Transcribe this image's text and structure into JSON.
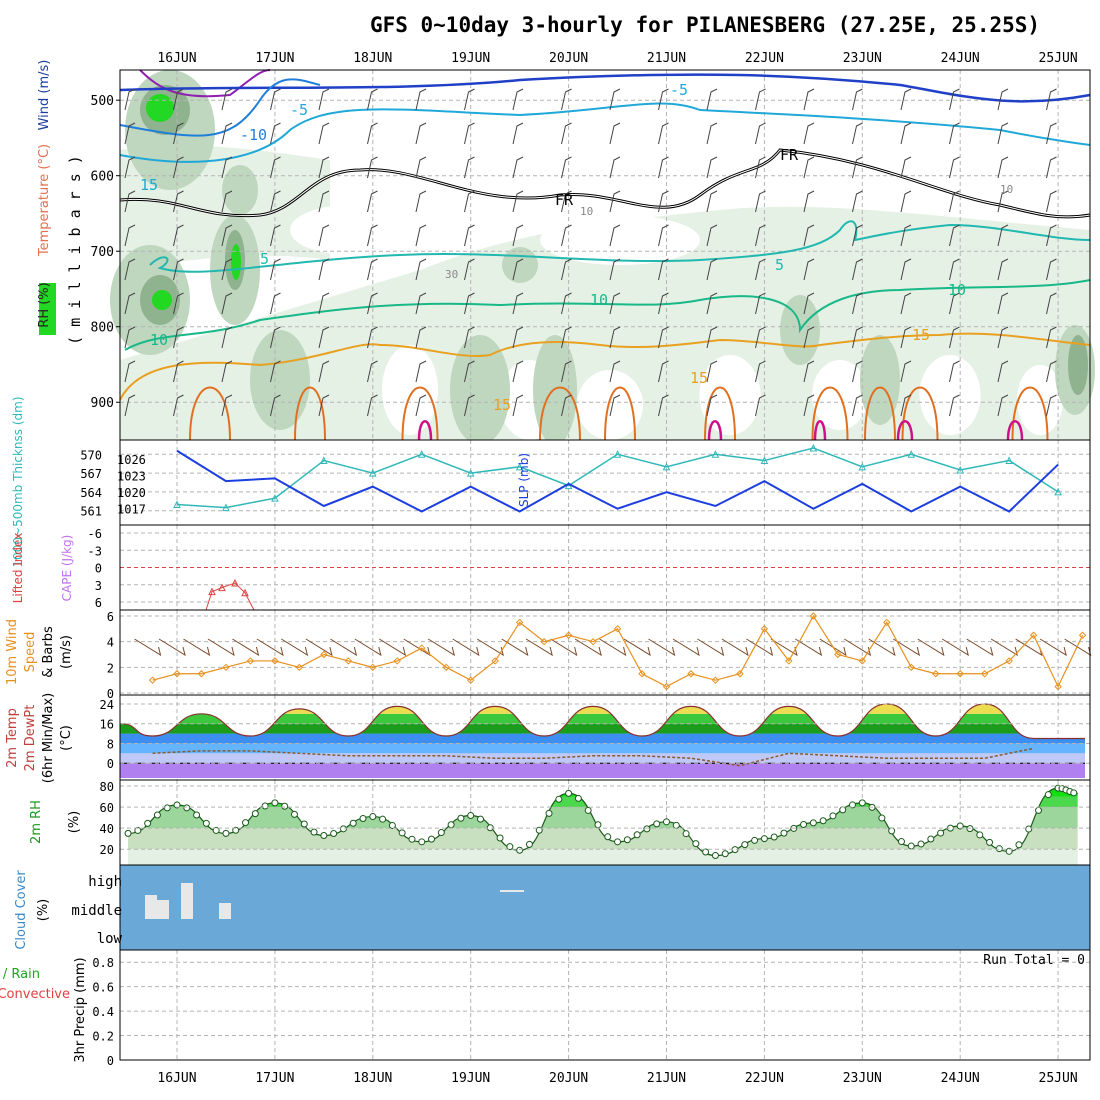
{
  "title": "GFS 0~10day 3-hourly for PILANESBERG (27.25E, 25.25S)",
  "colors": {
    "grid": "#b4b4b4",
    "rh_light": "#e6f1e6",
    "rh_mid": "#bfd6bf",
    "rh_dark": "#8fb28f",
    "rh_bright": "#22d822",
    "fr_line": "#000000",
    "temp_m10": "#1e7fd8",
    "temp_m5": "#1fa8d8",
    "temp_5": "#22b8b0",
    "temp_10": "#18b888",
    "temp_15": "#e8a020",
    "temp_20": "#e07020",
    "temp_25": "#d0108a",
    "wind500": "#2040c8",
    "slp": "#1c3ee0",
    "thickness": "#30b8b8",
    "lifted": "#e04040",
    "cape": "#c070f0",
    "wind10": "#e8901c",
    "barb": "#7a4a2a",
    "cloud_bg": "#6aa8d8",
    "cloud": "#e8e8e8",
    "temp_low": "#1c9ce8",
    "temp_high": "#1aa81a",
    "temp_peak": "#f0e060",
    "dew": "#b080f0",
    "rh2m": "#22c822"
  },
  "date_labels": [
    "16JUN",
    "17JUN",
    "18JUN",
    "19JUN",
    "20JUN",
    "21JUN",
    "22JUN",
    "23JUN",
    "24JUN",
    "25JUN"
  ],
  "panels": {
    "upper": {
      "ylabel_rh": "RH (%)",
      "ylabel_temp": "Temperature (°C)",
      "ylabel_wind": "Wind (m/s)",
      "ylabel_mb": "( m i l l i b a r s )",
      "yticks": [
        "500",
        "600",
        "700",
        "800",
        "900"
      ],
      "contour_labels": [
        "-10",
        "-5",
        "5",
        "10",
        "15",
        "15",
        "15",
        "-5",
        "5",
        "10",
        "10",
        "15",
        "FR",
        "FR",
        "FR",
        "10",
        "10",
        "30",
        "10"
      ]
    },
    "thickness_slp": {
      "ylabel_left": "1000~500mb Thicknss (dm)",
      "ylabel_right": "SLP (mb)",
      "left_ticks": [
        "570",
        "567",
        "564",
        "561"
      ],
      "right_ticks": [
        "1026",
        "1023",
        "1020",
        "1017"
      ]
    },
    "stability": {
      "ylabel_left": "Lifted Index",
      "ylabel_right": "CAPE (J/kg)",
      "ticks": [
        "-6",
        "-3",
        "0",
        "3",
        "6"
      ]
    },
    "wind10": {
      "ylabel": [
        "10m Wind",
        "Speed",
        "& Barbs",
        "(m/s)"
      ],
      "ticks": [
        "6",
        "4",
        "2",
        "0"
      ]
    },
    "temp2m": {
      "ylabel": [
        "2m Temp",
        "2m DewPt",
        "(6hr Min/Max)",
        "(°C)"
      ],
      "ticks": [
        "24",
        "16",
        "8",
        "0"
      ]
    },
    "rh2m": {
      "ylabel": [
        "2m RH",
        "(%)"
      ],
      "ticks": [
        "80",
        "60",
        "40",
        "20"
      ]
    },
    "cloud": {
      "ylabel": [
        "Cloud Cover",
        "(%)"
      ],
      "levels": [
        "high",
        "middle",
        "low"
      ]
    },
    "precip": {
      "ylabel": [
        "Total / Rain",
        "Convective",
        "3hr Precip (mm)"
      ],
      "ticks": [
        "0.8",
        "0.6",
        "0.4",
        "0.2",
        "0"
      ],
      "run_total": "Run Total = 0"
    }
  },
  "chart_data": [
    {
      "type": "line",
      "title": "1000~500mb Thickness (dm) and SLP (mb)",
      "x": [
        "16JUN",
        "16.5",
        "17JUN",
        "17.5",
        "18JUN",
        "18.5",
        "19JUN",
        "19.5",
        "20JUN",
        "20.5",
        "21JUN",
        "21.5",
        "22JUN",
        "22.5",
        "23JUN",
        "23.5",
        "24JUN",
        "24.5",
        "25JUN"
      ],
      "series": [
        {
          "name": "SLP (mb)",
          "values": [
            1027.5,
            1022,
            1022.5,
            1017.5,
            1021,
            1016.5,
            1021,
            1016.5,
            1021.5,
            1017,
            1020,
            1017.5,
            1022,
            1017,
            1021.5,
            1016.5,
            1021,
            1016.5,
            1025
          ]
        },
        {
          "name": "Thickness (dm)",
          "values": [
            562,
            561.5,
            563,
            569,
            567,
            570,
            567,
            568,
            565,
            570,
            568,
            570,
            569,
            571,
            568,
            570,
            567.5,
            569,
            564
          ]
        }
      ],
      "ylim_left": [
        560,
        571
      ],
      "ylim_right": [
        1015.5,
        1028
      ]
    },
    {
      "type": "line",
      "title": "10m Wind Speed (m/s)",
      "x": [
        "15.75",
        "16",
        "16.25",
        "16.5",
        "16.75",
        "17",
        "17.25",
        "17.5",
        "17.75",
        "18",
        "18.25",
        "18.5",
        "18.75",
        "19",
        "19.25",
        "19.5",
        "19.75",
        "20",
        "20.25",
        "20.5",
        "20.75",
        "21",
        "21.25",
        "21.5",
        "21.75",
        "22",
        "22.25",
        "22.5",
        "22.75",
        "23",
        "23.25",
        "23.5",
        "23.75",
        "24",
        "24.25",
        "24.5",
        "24.75",
        "25",
        "25.25"
      ],
      "values": [
        1.0,
        1.5,
        1.5,
        2.0,
        2.5,
        2.5,
        2.0,
        3.0,
        2.5,
        2.0,
        2.5,
        3.5,
        2.0,
        1.0,
        2.5,
        5.5,
        4.0,
        4.5,
        4.0,
        5.0,
        1.5,
        0.5,
        1.5,
        1.0,
        1.5,
        5.0,
        2.5,
        6.0,
        3.0,
        2.5,
        5.5,
        2.0,
        1.5,
        1.5,
        1.5,
        2.5,
        4.5,
        0.5,
        4.5
      ],
      "ylim": [
        0,
        6
      ]
    },
    {
      "type": "area",
      "title": "2m Temp / 2m DewPt (°C)",
      "x": [
        "16JUN",
        "16.5",
        "17JUN",
        "17.5",
        "18JUN",
        "18.5",
        "19JUN",
        "19.5",
        "20JUN",
        "20.5",
        "21JUN",
        "21.5",
        "22JUN",
        "22.5",
        "23JUN",
        "23.5",
        "24JUN",
        "24.5",
        "25JUN"
      ],
      "series": [
        {
          "name": "2m Temp",
          "values": [
            11,
            20,
            11,
            22,
            11,
            23,
            11,
            23,
            11,
            23,
            11,
            23,
            11,
            23,
            11,
            24,
            11,
            24,
            10
          ]
        },
        {
          "name": "2m DewPt",
          "values": [
            4,
            5,
            5,
            4,
            3,
            3,
            3,
            2,
            2,
            3,
            3,
            2,
            -1,
            4,
            3,
            2,
            2,
            2,
            6
          ]
        }
      ],
      "ylim": [
        -6,
        26
      ]
    },
    {
      "type": "area",
      "title": "2m RH (%)",
      "x": [
        "15.5",
        "16",
        "16.5",
        "17",
        "17.5",
        "18",
        "18.5",
        "19",
        "19.5",
        "20",
        "20.5",
        "21",
        "21.5",
        "22",
        "22.5",
        "23",
        "23.5",
        "24",
        "24.5",
        "25",
        "25.2"
      ],
      "values": [
        35,
        62,
        35,
        64,
        33,
        51,
        27,
        52,
        19,
        73,
        27,
        46,
        14,
        30,
        45,
        64,
        23,
        42,
        18,
        78,
        73
      ],
      "ylim": [
        5,
        80
      ]
    },
    {
      "type": "bar",
      "title": "3hr Precip (mm)",
      "categories": [
        "16JUN",
        "17JUN",
        "18JUN",
        "19JUN",
        "20JUN",
        "21JUN",
        "22JUN",
        "23JUN",
        "24JUN",
        "25JUN"
      ],
      "values": [
        0,
        0,
        0,
        0,
        0,
        0,
        0,
        0,
        0,
        0
      ],
      "ylim": [
        0,
        0.9
      ]
    }
  ]
}
